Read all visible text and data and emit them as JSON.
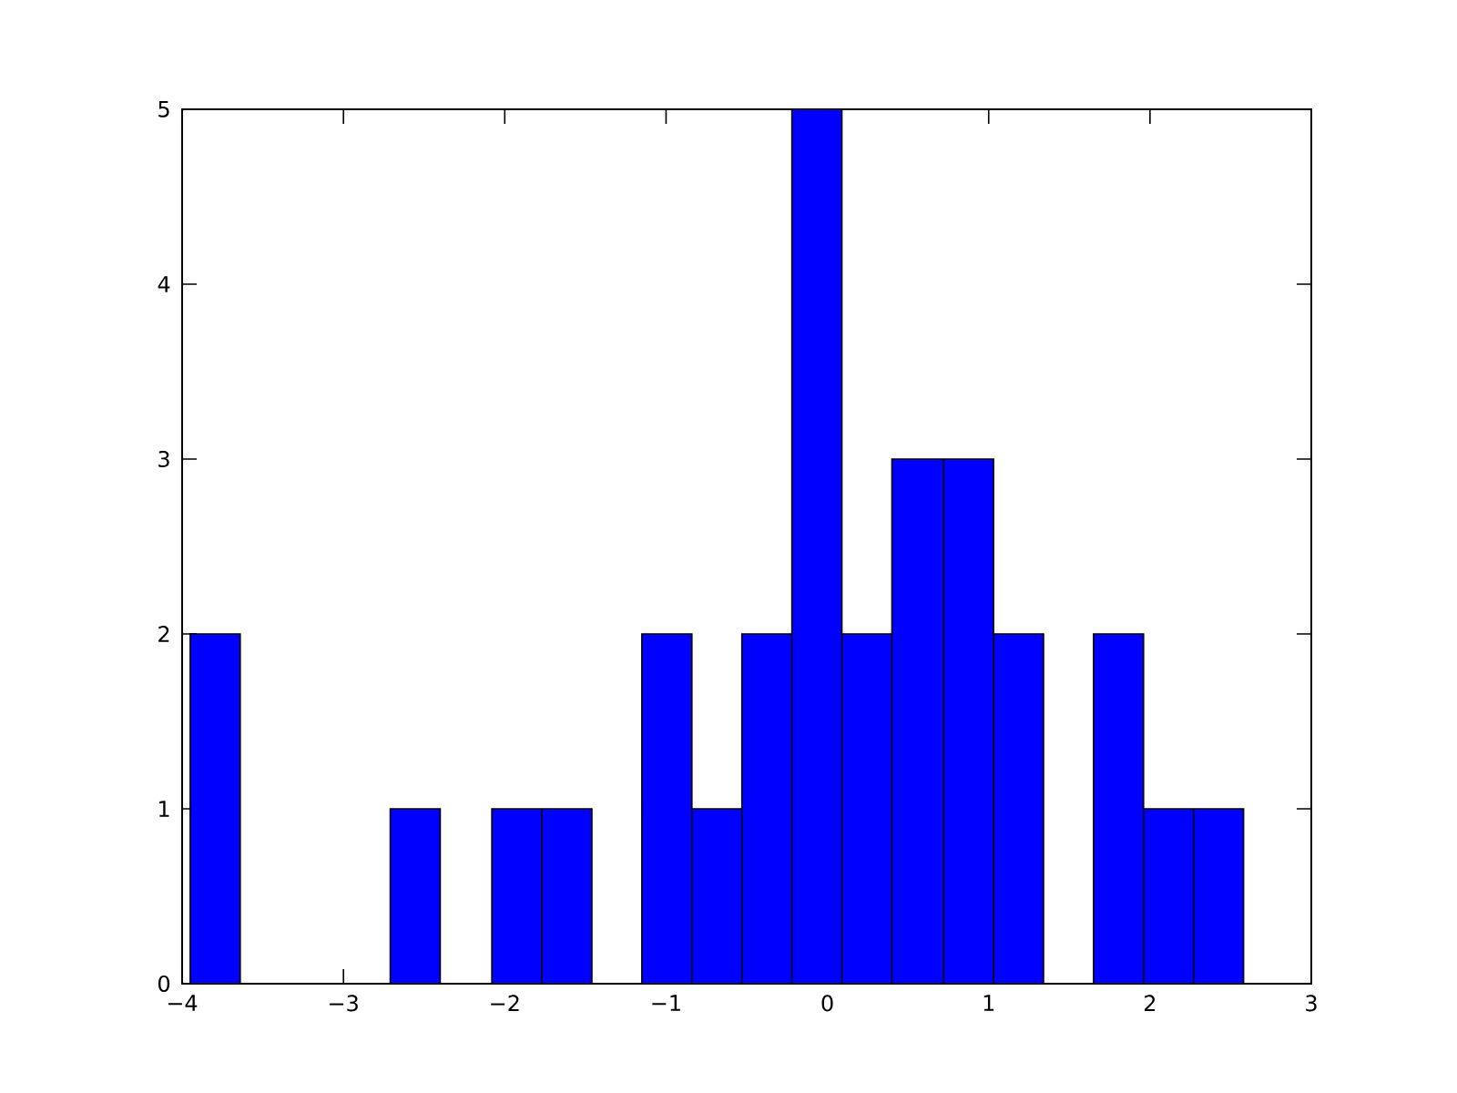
{
  "chart_data": {
    "type": "histogram",
    "bins": [
      -3.95,
      -3.64,
      -2.71,
      -2.4,
      -2.08,
      -1.77,
      -1.46,
      -1.15,
      -0.84,
      -0.53,
      -0.22,
      0.09,
      0.4,
      0.72,
      1.03,
      1.34,
      1.65,
      1.96,
      2.27,
      2.58
    ],
    "values": [
      2,
      0,
      1,
      0,
      1,
      1,
      0,
      2,
      1,
      2,
      5,
      2,
      3,
      3,
      2,
      0,
      2,
      1,
      1
    ],
    "color": "#0000ff",
    "xlim": [
      -4,
      3
    ],
    "ylim": [
      0,
      5
    ],
    "xticks": [
      {
        "value": -4,
        "label": "−4"
      },
      {
        "value": -3,
        "label": "−3"
      },
      {
        "value": -2,
        "label": "−2"
      },
      {
        "value": -1,
        "label": "−1"
      },
      0,
      1,
      2,
      3
    ],
    "yticks": [
      0,
      1,
      2,
      3,
      4,
      5
    ],
    "grid": false
  }
}
